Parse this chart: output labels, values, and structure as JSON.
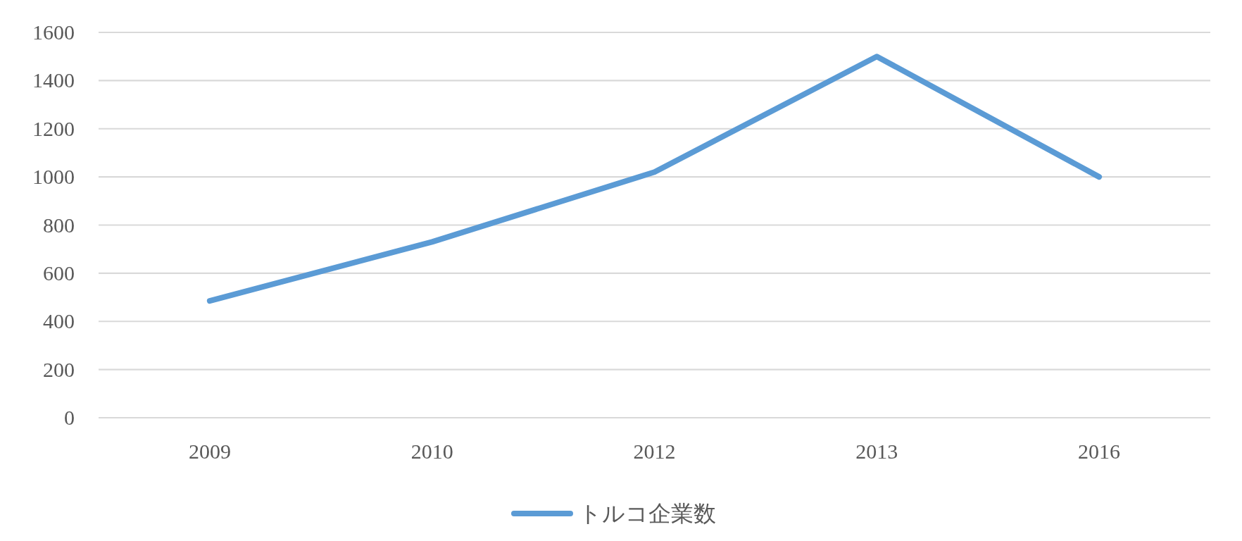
{
  "chart_data": {
    "type": "line",
    "categories": [
      "2009",
      "2010",
      "2012",
      "2013",
      "2016"
    ],
    "series": [
      {
        "name": "トルコ企業数",
        "color": "#5b9bd5",
        "values": [
          485,
          730,
          1020,
          1500,
          1000
        ]
      }
    ],
    "ylim": [
      0,
      1600
    ],
    "yticks": [
      0,
      200,
      400,
      600,
      800,
      1000,
      1200,
      1400,
      1600
    ],
    "grid": "y",
    "legend": "bottom"
  }
}
